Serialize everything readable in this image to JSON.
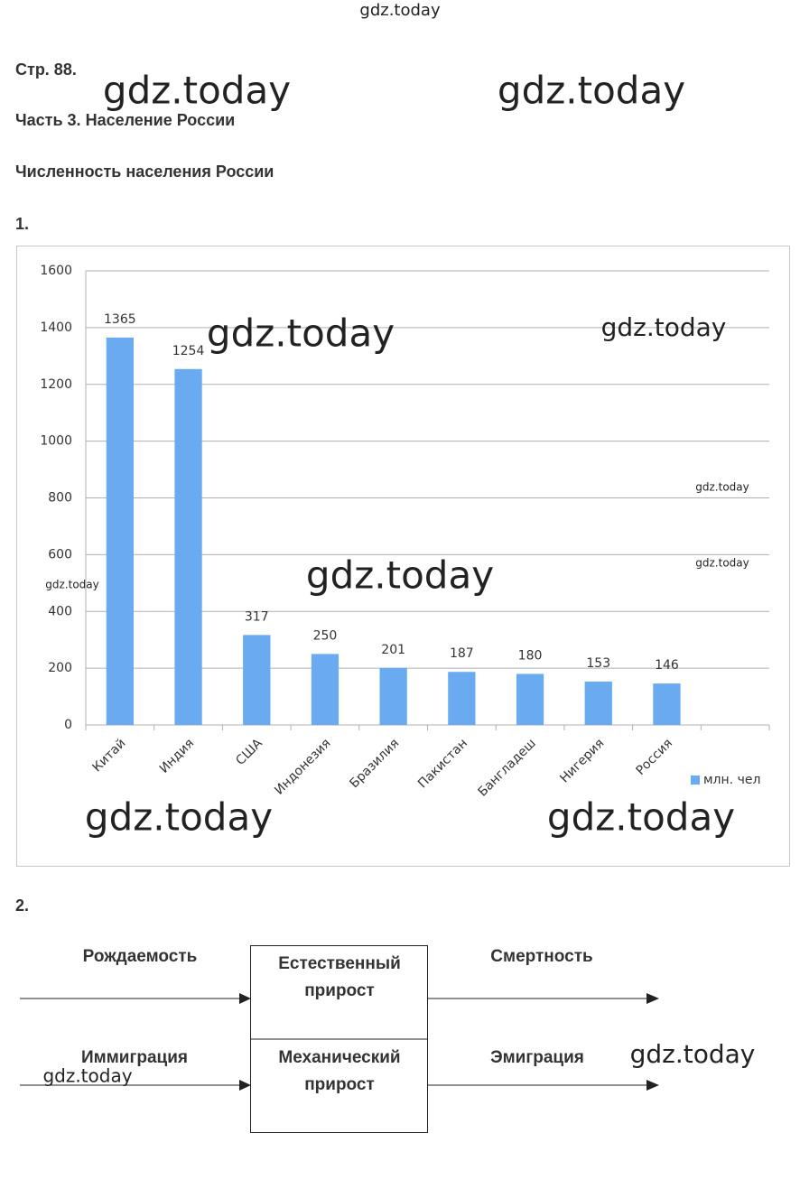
{
  "header": {
    "page": "Стр. 88.",
    "part": "Часть 3. Население России",
    "section": "Численность населения России"
  },
  "task1": {
    "number": "1."
  },
  "chart_data": {
    "type": "bar",
    "categories": [
      "Китай",
      "Индия",
      "США",
      "Индонезия",
      "Бразилия",
      "Пакистан",
      "Бангладеш",
      "Нигерия",
      "Россия",
      null
    ],
    "series": [
      {
        "name": "млн. чел",
        "color": "#6aaaf0",
        "values": [
          1365,
          1254,
          317,
          250,
          201,
          187,
          180,
          153,
          146,
          null
        ]
      }
    ],
    "ylim": [
      0,
      1600
    ],
    "yticks": [
      0,
      200,
      400,
      600,
      800,
      1000,
      1200,
      1400,
      1600
    ],
    "grid": true,
    "legend": "right"
  },
  "task2": {
    "number": "2.",
    "left": [
      "Рождаемость",
      "Иммиграция"
    ],
    "boxes": [
      [
        "Естественный",
        "прирост"
      ],
      [
        "Механический",
        "прирост"
      ]
    ],
    "right": [
      "Смертность",
      "Эмиграция"
    ]
  },
  "watermarks": [
    "gdz.today",
    "gdz.today",
    "gdz.today",
    "gdz.today",
    "gdz.today",
    "gdz.today",
    "gdz.today",
    "gdz.today",
    "gdz.today",
    "gdz.today",
    "gdz.today",
    "gdz.today",
    "gdz.today"
  ]
}
